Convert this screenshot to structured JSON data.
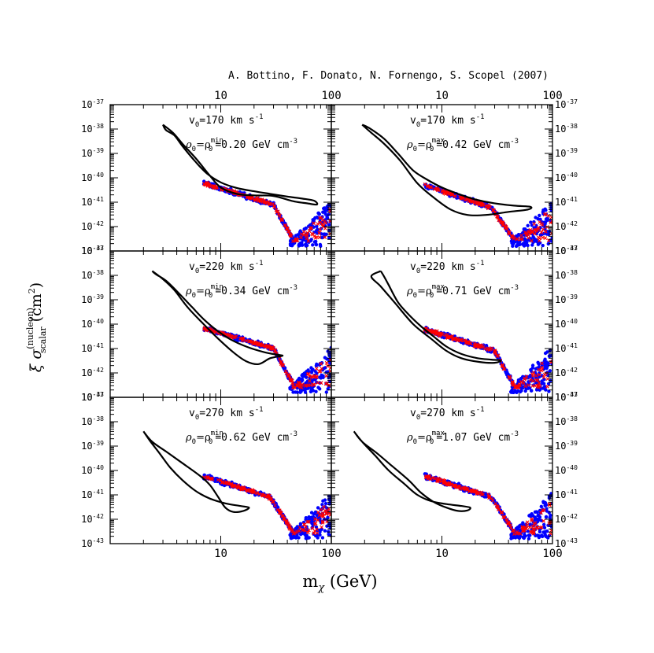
{
  "credit": "A. Bottino, F. Donato, N. Fornengo, S. Scopel (2007)",
  "chart_data": {
    "type": "scatter",
    "xlabel": "m",
    "xlabel_sub": "χ",
    "xlabel_unit": "(GeV)",
    "ylabel_core": "ξ σ",
    "ylabel_sup": "(nucleon)",
    "ylabel_sub": "scalar",
    "ylabel_unit": "(cm",
    "ylabel_unit_sup": "2",
    "ylabel_unit_close": ")",
    "x_scale": "log",
    "y_scale": "log",
    "xlim": [
      1,
      100
    ],
    "ylim": [
      1e-43,
      1e-37
    ],
    "x_tick_labels": [
      {
        "v": 10,
        "t": "10"
      },
      {
        "v": 100,
        "t": "100"
      }
    ],
    "y_tick_labels": [
      {
        "e": -37,
        "t": "10",
        "s": "-37"
      },
      {
        "e": -38,
        "t": "10",
        "s": "-38"
      },
      {
        "e": -39,
        "t": "10",
        "s": "-39"
      },
      {
        "e": -40,
        "t": "10",
        "s": "-40"
      },
      {
        "e": -41,
        "t": "10",
        "s": "-41"
      },
      {
        "e": -42,
        "t": "10",
        "s": "-42"
      },
      {
        "e": -43,
        "t": "10",
        "s": "-43"
      }
    ],
    "series_colors": {
      "contour": "#000000",
      "model_circles": "#0000ff",
      "model_crosses": "#ff0000"
    },
    "panels": [
      {
        "v0_text": "v",
        "v0_sub": "0",
        "v0_value": "=170 km s",
        "v0_sup": "-1",
        "rho_a": "ρ",
        "rho_a_sub": "0",
        "rho_b": "=ρ",
        "rho_b_sup": "min",
        "rho_b_sub": "0",
        "rho_value": "=0.20 GeV cm",
        "rho_sup": "-3",
        "contour": [
          [
            3,
            1.5e-38
          ],
          [
            3.7,
            7e-39
          ],
          [
            4.5,
            2.5e-39
          ],
          [
            6,
            6e-40
          ],
          [
            8,
            1.2e-40
          ],
          [
            10,
            4e-41
          ],
          [
            14,
            2.2e-41
          ],
          [
            20,
            1.9e-41
          ],
          [
            30,
            1.8e-41
          ],
          [
            45,
            1.1e-41
          ],
          [
            60,
            9e-42
          ],
          [
            74,
            8e-42
          ],
          [
            70,
            1.15e-41
          ],
          [
            55,
            1.4e-41
          ],
          [
            40,
            1.7e-41
          ],
          [
            28,
            2.2e-41
          ],
          [
            20,
            2.8e-41
          ],
          [
            14,
            3.8e-41
          ],
          [
            10,
            6.5e-41
          ],
          [
            7.5,
            1.5e-40
          ],
          [
            5.8,
            5e-40
          ],
          [
            4.5,
            2e-39
          ],
          [
            3.8,
            5.5e-39
          ],
          [
            3.2,
            9e-39
          ],
          [
            3,
            1.5e-38
          ]
        ],
        "band": {
          "x_start": 7,
          "x_bend": 30,
          "x_end": 45,
          "y_start": 6e-41,
          "y_bend": 8e-42,
          "y_end": 3e-43,
          "width": 0.14,
          "valley_floor": 2.5e-43,
          "right_rise_top": 1.2e-41
        }
      },
      {
        "v0_text": "v",
        "v0_sub": "0",
        "v0_value": "=170 km s",
        "v0_sup": "-1",
        "rho_a": "ρ",
        "rho_a_sub": "0",
        "rho_b": "=ρ",
        "rho_b_sup": "max",
        "rho_b_sub": "0",
        "rho_value": "=0.42 GeV cm",
        "rho_sup": "-3",
        "contour": [
          [
            1.9,
            1.5e-38
          ],
          [
            2.3,
            7e-39
          ],
          [
            3,
            2.5e-39
          ],
          [
            4.2,
            5e-40
          ],
          [
            6,
            6e-41
          ],
          [
            8.5,
            1.5e-41
          ],
          [
            12,
            5e-42
          ],
          [
            17,
            3e-42
          ],
          [
            25,
            3e-42
          ],
          [
            40,
            4e-42
          ],
          [
            60,
            5e-42
          ],
          [
            63,
            6.5e-42
          ],
          [
            45,
            7.2e-42
          ],
          [
            30,
            9e-42
          ],
          [
            20,
            1.3e-41
          ],
          [
            14,
            2.2e-41
          ],
          [
            10,
            4e-41
          ],
          [
            7.5,
            8e-41
          ],
          [
            5.5,
            2e-40
          ],
          [
            4,
            1e-39
          ],
          [
            3,
            4e-39
          ],
          [
            2.2,
            1.1e-38
          ],
          [
            1.9,
            1.5e-38
          ]
        ],
        "band": {
          "x_start": 7,
          "x_bend": 28,
          "x_end": 45,
          "y_start": 5e-41,
          "y_bend": 6e-42,
          "y_end": 3e-43,
          "width": 0.14,
          "valley_floor": 2.5e-43,
          "right_rise_top": 1.2e-41
        }
      },
      {
        "v0_text": "v",
        "v0_sub": "0",
        "v0_value": "=220 km s",
        "v0_sup": "-1",
        "rho_a": "ρ",
        "rho_a_sub": "0",
        "rho_b": "=ρ",
        "rho_b_sup": "min",
        "rho_b_sub": "0",
        "rho_value": "=0.34 GeV cm",
        "rho_sup": "-3",
        "contour": [
          [
            2.4,
            1.5e-38
          ],
          [
            3,
            7e-39
          ],
          [
            3.8,
            2.5e-39
          ],
          [
            5,
            5e-40
          ],
          [
            7,
            1e-40
          ],
          [
            9.5,
            2.5e-41
          ],
          [
            13,
            7e-42
          ],
          [
            17,
            3e-42
          ],
          [
            22,
            2.3e-42
          ],
          [
            28,
            4e-42
          ],
          [
            36,
            5e-42
          ],
          [
            33,
            5.5e-42
          ],
          [
            25,
            7e-42
          ],
          [
            17,
            1.2e-41
          ],
          [
            12,
            2.5e-41
          ],
          [
            9,
            6e-41
          ],
          [
            7,
            1.6e-40
          ],
          [
            5.5,
            5e-40
          ],
          [
            4.2,
            1.8e-39
          ],
          [
            3.2,
            6e-39
          ],
          [
            2.6,
            1.1e-38
          ],
          [
            2.4,
            1.5e-38
          ]
        ],
        "band": {
          "x_start": 7,
          "x_bend": 30,
          "x_end": 46,
          "y_start": 7e-41,
          "y_bend": 1e-41,
          "y_end": 3e-43,
          "width": 0.13,
          "valley_floor": 2.5e-43,
          "right_rise_top": 1.3e-41
        }
      },
      {
        "v0_text": "v",
        "v0_sub": "0",
        "v0_value": "=220 km s",
        "v0_sup": "-1",
        "rho_a": "ρ",
        "rho_a_sub": "0",
        "rho_b": "=ρ",
        "rho_b_sup": "max",
        "rho_b_sub": "0",
        "rho_value": "=0.71 GeV cm",
        "rho_sup": "-3",
        "contour": [
          [
            2.8,
            1.5e-38
          ],
          [
            2.3,
            9e-39
          ],
          [
            2.8,
            3.5e-39
          ],
          [
            3.8,
            7e-40
          ],
          [
            5.5,
            1e-40
          ],
          [
            8,
            2.5e-41
          ],
          [
            11,
            8e-42
          ],
          [
            15,
            4e-42
          ],
          [
            22,
            2.8e-42
          ],
          [
            30,
            2.6e-42
          ],
          [
            34,
            3.2e-42
          ],
          [
            28,
            3.5e-42
          ],
          [
            21,
            4e-42
          ],
          [
            15,
            6e-42
          ],
          [
            11,
            1.2e-41
          ],
          [
            8.5,
            3e-41
          ],
          [
            6.5,
            8e-41
          ],
          [
            5,
            2.5e-40
          ],
          [
            4,
            8e-40
          ],
          [
            3.3,
            4e-39
          ],
          [
            3,
            9e-39
          ],
          [
            2.8,
            1.5e-38
          ]
        ],
        "band": {
          "x_start": 7,
          "x_bend": 30,
          "x_end": 45,
          "y_start": 6e-41,
          "y_bend": 8e-42,
          "y_end": 3e-43,
          "width": 0.14,
          "valley_floor": 2.5e-43,
          "right_rise_top": 1.3e-41
        }
      },
      {
        "v0_text": "v",
        "v0_sub": "0",
        "v0_value": "=270 km s",
        "v0_sup": "-1",
        "rho_a": "ρ",
        "rho_a_sub": "0",
        "rho_b": "=ρ",
        "rho_b_sup": "min",
        "rho_b_sub": "0",
        "rho_value": "=0.62 GeV cm",
        "rho_sup": "-3",
        "contour": [
          [
            2,
            4e-39
          ],
          [
            2.4,
            1.5e-39
          ],
          [
            3.2,
            6e-40
          ],
          [
            4.5,
            2e-40
          ],
          [
            6.5,
            6e-41
          ],
          [
            8,
            2.5e-41
          ],
          [
            9.5,
            8e-42
          ],
          [
            11,
            3e-42
          ],
          [
            13,
            2e-42
          ],
          [
            16,
            2.2e-42
          ],
          [
            18,
            3e-42
          ],
          [
            15,
            3.5e-42
          ],
          [
            11,
            4.5e-42
          ],
          [
            8,
            7e-42
          ],
          [
            6,
            1.4e-41
          ],
          [
            4.5,
            4e-41
          ],
          [
            3.5,
            1.3e-40
          ],
          [
            2.8,
            5e-40
          ],
          [
            2.3,
            1.6e-39
          ],
          [
            2,
            4e-39
          ]
        ],
        "band": {
          "x_start": 7,
          "x_bend": 28,
          "x_end": 45,
          "y_start": 6e-41,
          "y_bend": 8e-42,
          "y_end": 3e-43,
          "width": 0.14,
          "valley_floor": 2.5e-43,
          "right_rise_top": 1.3e-41
        }
      },
      {
        "v0_text": "v",
        "v0_sub": "0",
        "v0_value": "=270 km s",
        "v0_sup": "-1",
        "rho_a": "ρ",
        "rho_a_sub": "0",
        "rho_b": "=ρ",
        "rho_b_sup": "max",
        "rho_b_sub": "0",
        "rho_value": "=1.07 GeV cm",
        "rho_sup": "-3",
        "contour": [
          [
            1.6,
            4e-39
          ],
          [
            1.9,
            1.5e-39
          ],
          [
            2.6,
            5e-40
          ],
          [
            3.5,
            1.6e-40
          ],
          [
            5,
            4e-41
          ],
          [
            6.5,
            1.2e-41
          ],
          [
            8.5,
            5e-42
          ],
          [
            11,
            3e-42
          ],
          [
            14,
            2.2e-42
          ],
          [
            17,
            2.3e-42
          ],
          [
            18,
            3e-42
          ],
          [
            15,
            3.5e-42
          ],
          [
            11,
            4.2e-42
          ],
          [
            8,
            5.5e-42
          ],
          [
            6,
            1e-41
          ],
          [
            4.5,
            3e-41
          ],
          [
            3.3,
            1e-40
          ],
          [
            2.5,
            4e-40
          ],
          [
            1.9,
            1.5e-39
          ],
          [
            1.6,
            4e-39
          ]
        ],
        "band": {
          "x_start": 7,
          "x_bend": 28,
          "x_end": 45,
          "y_start": 6e-41,
          "y_bend": 8e-42,
          "y_end": 3e-43,
          "width": 0.14,
          "valley_floor": 2.5e-43,
          "right_rise_top": 1.3e-41
        }
      }
    ]
  }
}
